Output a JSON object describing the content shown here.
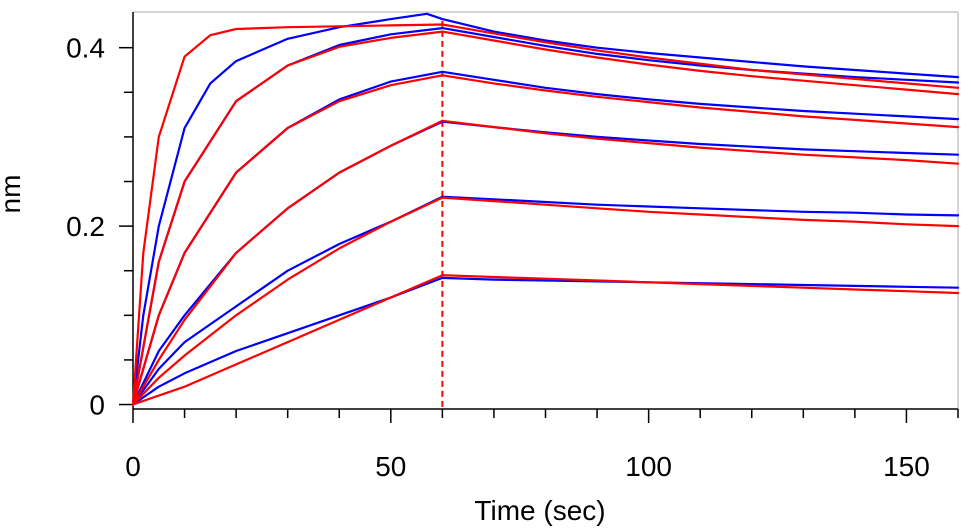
{
  "chart_data": {
    "type": "line",
    "title": "",
    "xlabel": "Time (sec)",
    "ylabel": "nm",
    "xlim": [
      0,
      160
    ],
    "ylim": [
      -0.005,
      0.44
    ],
    "x_ticks": [
      0,
      50,
      100,
      150
    ],
    "x_tick_labels": [
      "0",
      "50",
      "100",
      "150"
    ],
    "y_ticks": [
      0,
      0.2,
      0.4
    ],
    "y_tick_labels": [
      "0",
      "0.2",
      "0.4"
    ],
    "vertical_marker_x": 60,
    "grid": false,
    "legend": "none",
    "colors": {
      "measured": "#0000ff",
      "fit": "#ff0000",
      "marker": "#ff0000",
      "axis": "#000000",
      "plot_border": "#c8c8c8"
    },
    "series": [
      {
        "style": "measured",
        "x": [
          0,
          2,
          5,
          10,
          15,
          20,
          30,
          40,
          50,
          57,
          60,
          70,
          80,
          90,
          100,
          110,
          120,
          130,
          140,
          150,
          160
        ],
        "y": [
          0.0,
          0.1,
          0.2,
          0.31,
          0.36,
          0.385,
          0.41,
          0.423,
          0.432,
          0.438,
          0.432,
          0.418,
          0.408,
          0.4,
          0.394,
          0.389,
          0.384,
          0.379,
          0.375,
          0.371,
          0.367
        ]
      },
      {
        "style": "fit",
        "x": [
          0,
          2,
          5,
          10,
          15,
          20,
          30,
          40,
          50,
          60,
          70,
          80,
          90,
          100,
          110,
          120,
          130,
          140,
          150,
          160
        ],
        "y": [
          0.0,
          0.17,
          0.3,
          0.39,
          0.414,
          0.421,
          0.423,
          0.424,
          0.425,
          0.426,
          0.416,
          0.406,
          0.397,
          0.389,
          0.382,
          0.375,
          0.37,
          0.365,
          0.36,
          0.355
        ]
      },
      {
        "style": "measured",
        "x": [
          0,
          5,
          10,
          20,
          30,
          40,
          50,
          60,
          70,
          80,
          90,
          100,
          110,
          120,
          130,
          140,
          150,
          160
        ],
        "y": [
          0.0,
          0.16,
          0.25,
          0.34,
          0.38,
          0.403,
          0.415,
          0.422,
          0.412,
          0.402,
          0.393,
          0.386,
          0.38,
          0.375,
          0.371,
          0.367,
          0.364,
          0.361
        ]
      },
      {
        "style": "fit",
        "x": [
          0,
          5,
          10,
          20,
          30,
          40,
          50,
          60,
          70,
          80,
          90,
          100,
          110,
          120,
          130,
          140,
          150,
          160
        ],
        "y": [
          0.0,
          0.16,
          0.25,
          0.34,
          0.38,
          0.401,
          0.411,
          0.418,
          0.408,
          0.398,
          0.389,
          0.381,
          0.374,
          0.368,
          0.363,
          0.358,
          0.353,
          0.348
        ]
      },
      {
        "style": "measured",
        "x": [
          0,
          5,
          10,
          20,
          30,
          40,
          50,
          60,
          70,
          80,
          90,
          100,
          110,
          120,
          130,
          140,
          150,
          160
        ],
        "y": [
          0.0,
          0.1,
          0.17,
          0.26,
          0.31,
          0.342,
          0.362,
          0.373,
          0.364,
          0.355,
          0.348,
          0.342,
          0.337,
          0.333,
          0.329,
          0.326,
          0.323,
          0.32
        ]
      },
      {
        "style": "fit",
        "x": [
          0,
          5,
          10,
          20,
          30,
          40,
          50,
          60,
          70,
          80,
          90,
          100,
          110,
          120,
          130,
          140,
          150,
          160
        ],
        "y": [
          0.0,
          0.1,
          0.17,
          0.26,
          0.31,
          0.34,
          0.358,
          0.369,
          0.36,
          0.352,
          0.345,
          0.339,
          0.333,
          0.328,
          0.323,
          0.319,
          0.315,
          0.311
        ]
      },
      {
        "style": "measured",
        "x": [
          0,
          5,
          10,
          20,
          30,
          40,
          50,
          60,
          70,
          80,
          90,
          100,
          110,
          120,
          130,
          140,
          150,
          160
        ],
        "y": [
          0.0,
          0.06,
          0.1,
          0.17,
          0.22,
          0.26,
          0.29,
          0.317,
          0.311,
          0.305,
          0.3,
          0.296,
          0.292,
          0.289,
          0.286,
          0.284,
          0.282,
          0.28
        ]
      },
      {
        "style": "fit",
        "x": [
          0,
          5,
          10,
          20,
          30,
          40,
          50,
          60,
          70,
          80,
          90,
          100,
          110,
          120,
          130,
          140,
          150,
          160
        ],
        "y": [
          0.0,
          0.05,
          0.095,
          0.17,
          0.22,
          0.26,
          0.29,
          0.318,
          0.311,
          0.304,
          0.298,
          0.293,
          0.288,
          0.284,
          0.28,
          0.277,
          0.274,
          0.27
        ]
      },
      {
        "style": "measured",
        "x": [
          0,
          5,
          10,
          20,
          30,
          40,
          50,
          60,
          70,
          80,
          90,
          100,
          110,
          120,
          130,
          140,
          150,
          160
        ],
        "y": [
          0.0,
          0.04,
          0.07,
          0.11,
          0.15,
          0.18,
          0.205,
          0.233,
          0.23,
          0.227,
          0.224,
          0.222,
          0.22,
          0.218,
          0.216,
          0.215,
          0.213,
          0.212
        ]
      },
      {
        "style": "fit",
        "x": [
          0,
          5,
          10,
          20,
          30,
          40,
          50,
          60,
          70,
          80,
          90,
          100,
          110,
          120,
          130,
          140,
          150,
          160
        ],
        "y": [
          0.0,
          0.03,
          0.055,
          0.1,
          0.14,
          0.175,
          0.205,
          0.232,
          0.228,
          0.224,
          0.22,
          0.216,
          0.213,
          0.21,
          0.207,
          0.205,
          0.202,
          0.2
        ]
      },
      {
        "style": "measured",
        "x": [
          0,
          5,
          10,
          20,
          30,
          40,
          50,
          60,
          70,
          80,
          90,
          100,
          110,
          120,
          130,
          140,
          150,
          160
        ],
        "y": [
          0.0,
          0.02,
          0.035,
          0.06,
          0.08,
          0.1,
          0.12,
          0.142,
          0.14,
          0.139,
          0.138,
          0.137,
          0.136,
          0.135,
          0.134,
          0.133,
          0.132,
          0.131
        ]
      },
      {
        "style": "fit",
        "x": [
          0,
          5,
          10,
          20,
          30,
          40,
          50,
          60,
          70,
          80,
          90,
          100,
          110,
          120,
          130,
          140,
          150,
          160
        ],
        "y": [
          0.0,
          0.01,
          0.02,
          0.045,
          0.07,
          0.095,
          0.12,
          0.145,
          0.143,
          0.141,
          0.139,
          0.137,
          0.135,
          0.133,
          0.131,
          0.129,
          0.127,
          0.125
        ]
      }
    ]
  }
}
